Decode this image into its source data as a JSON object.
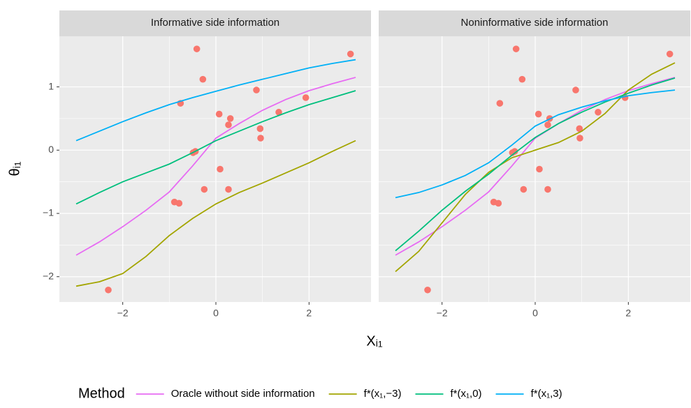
{
  "chart_data": {
    "type": "line",
    "xlabel": "Xᵢ₁",
    "ylabel": "θᵢ₁",
    "legend_title": "Method",
    "legend_position": "bottom",
    "grid": true,
    "xlim": [
      -3.36,
      3.33
    ],
    "ylim": [
      -2.4,
      1.8
    ],
    "xticks": [
      {
        "value": -2,
        "label": "−2"
      },
      0,
      2
    ],
    "yticks": [
      {
        "value": -2,
        "label": "−2"
      },
      {
        "value": -1,
        "label": "−1"
      },
      0,
      1
    ],
    "x": [
      -3,
      -2.5,
      -2,
      -1.5,
      -1,
      -0.5,
      0,
      0.5,
      1,
      1.5,
      2,
      2.5,
      3
    ],
    "points": {
      "color": "#f8766d",
      "x": [
        -0.41,
        -0.28,
        -0.76,
        0.07,
        0.31,
        0.27,
        0.87,
        0.95,
        0.96,
        1.35,
        1.93,
        2.89,
        -0.44,
        -0.49,
        0.09,
        -0.25,
        0.27,
        -0.89,
        -0.79,
        -2.31
      ],
      "y": [
        1.6,
        1.12,
        0.74,
        0.57,
        0.5,
        0.4,
        0.95,
        0.34,
        0.19,
        0.6,
        0.83,
        1.52,
        -0.02,
        -0.04,
        -0.3,
        -0.62,
        -0.62,
        -0.82,
        -0.84,
        -2.21
      ]
    },
    "series": [
      {
        "name": "Oracle without side information",
        "color": "#e76bf3"
      },
      {
        "name": "f*(x₁,−3)",
        "color": "#a3a500"
      },
      {
        "name": "f*(x₁,0)",
        "color": "#00bf7d"
      },
      {
        "name": "f*(x₁,3)",
        "color": "#00b0f6"
      }
    ],
    "panels": [
      {
        "title": "Informative side information",
        "series_values": [
          [
            -1.66,
            -1.45,
            -1.21,
            -0.95,
            -0.66,
            -0.25,
            0.19,
            0.42,
            0.63,
            0.8,
            0.94,
            1.05,
            1.15
          ],
          [
            -2.15,
            -2.08,
            -1.95,
            -1.68,
            -1.35,
            -1.08,
            -0.85,
            -0.67,
            -0.52,
            -0.36,
            -0.2,
            -0.02,
            0.15
          ],
          [
            -0.85,
            -0.67,
            -0.5,
            -0.36,
            -0.22,
            -0.04,
            0.15,
            0.3,
            0.45,
            0.59,
            0.72,
            0.83,
            0.94
          ],
          [
            0.15,
            0.3,
            0.45,
            0.59,
            0.72,
            0.83,
            0.93,
            1.03,
            1.12,
            1.21,
            1.3,
            1.37,
            1.43
          ]
        ]
      },
      {
        "title": "Noninformative side information",
        "series_values": [
          [
            -1.66,
            -1.45,
            -1.21,
            -0.95,
            -0.66,
            -0.25,
            0.19,
            0.42,
            0.63,
            0.8,
            0.94,
            1.05,
            1.15
          ],
          [
            -1.92,
            -1.6,
            -1.15,
            -0.7,
            -0.35,
            -0.12,
            0.0,
            0.12,
            0.3,
            0.58,
            0.95,
            1.2,
            1.38
          ],
          [
            -1.59,
            -1.28,
            -0.95,
            -0.65,
            -0.38,
            -0.08,
            0.2,
            0.42,
            0.6,
            0.76,
            0.9,
            1.03,
            1.14
          ],
          [
            -0.75,
            -0.67,
            -0.55,
            -0.4,
            -0.2,
            0.08,
            0.38,
            0.56,
            0.68,
            0.78,
            0.86,
            0.91,
            0.95
          ]
        ]
      }
    ]
  }
}
